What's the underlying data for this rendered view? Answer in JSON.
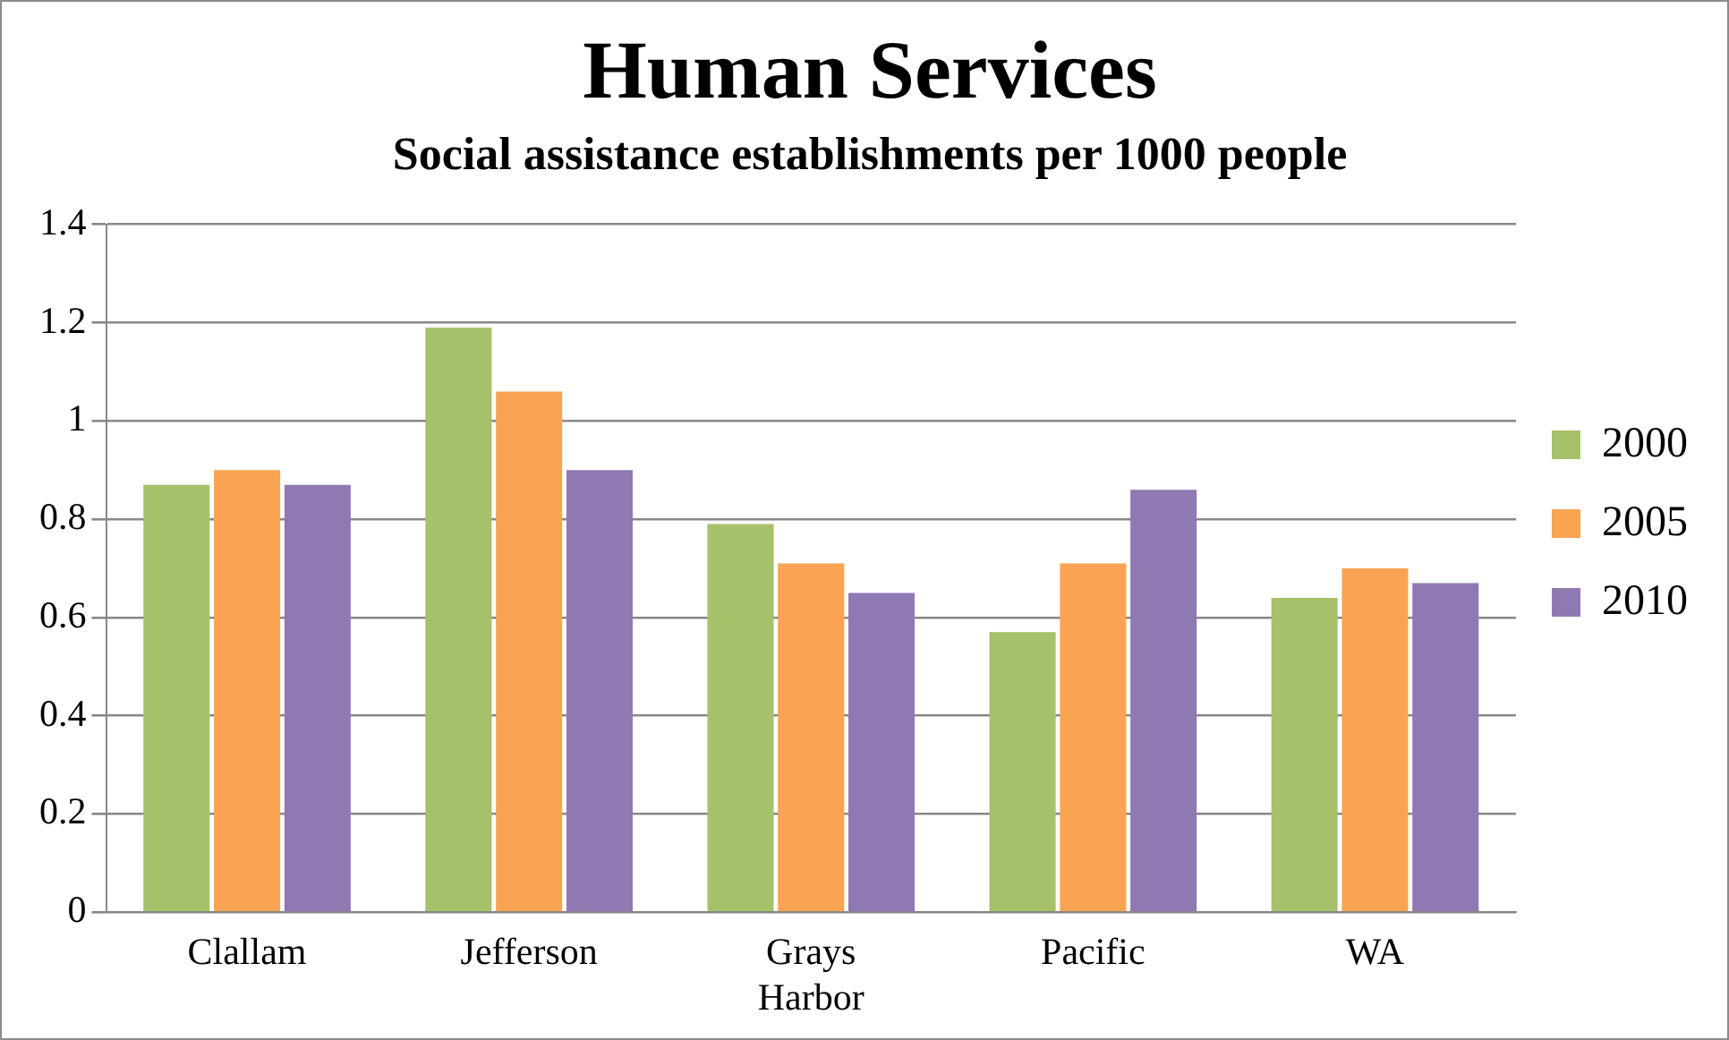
{
  "chart_data": {
    "type": "bar",
    "title": "Human Services",
    "subtitle": "Social assistance establishments per 1000 people",
    "categories": [
      "Clallam",
      "Jefferson",
      "Grays Harbor",
      "Pacific",
      "WA"
    ],
    "series": [
      {
        "name": "2000",
        "color": "#a5c26a",
        "values": [
          0.87,
          1.19,
          0.79,
          0.57,
          0.64
        ]
      },
      {
        "name": "2005",
        "color": "#f9a452",
        "values": [
          0.9,
          1.06,
          0.71,
          0.71,
          0.7
        ]
      },
      {
        "name": "2010",
        "color": "#9079b2",
        "values": [
          0.87,
          0.9,
          0.65,
          0.86,
          0.67
        ]
      }
    ],
    "ylim": [
      0,
      1.4
    ],
    "yticks": [
      0,
      0.2,
      0.4,
      0.6,
      0.8,
      1,
      1.2,
      1.4
    ],
    "grid": "y",
    "legend": "right"
  }
}
